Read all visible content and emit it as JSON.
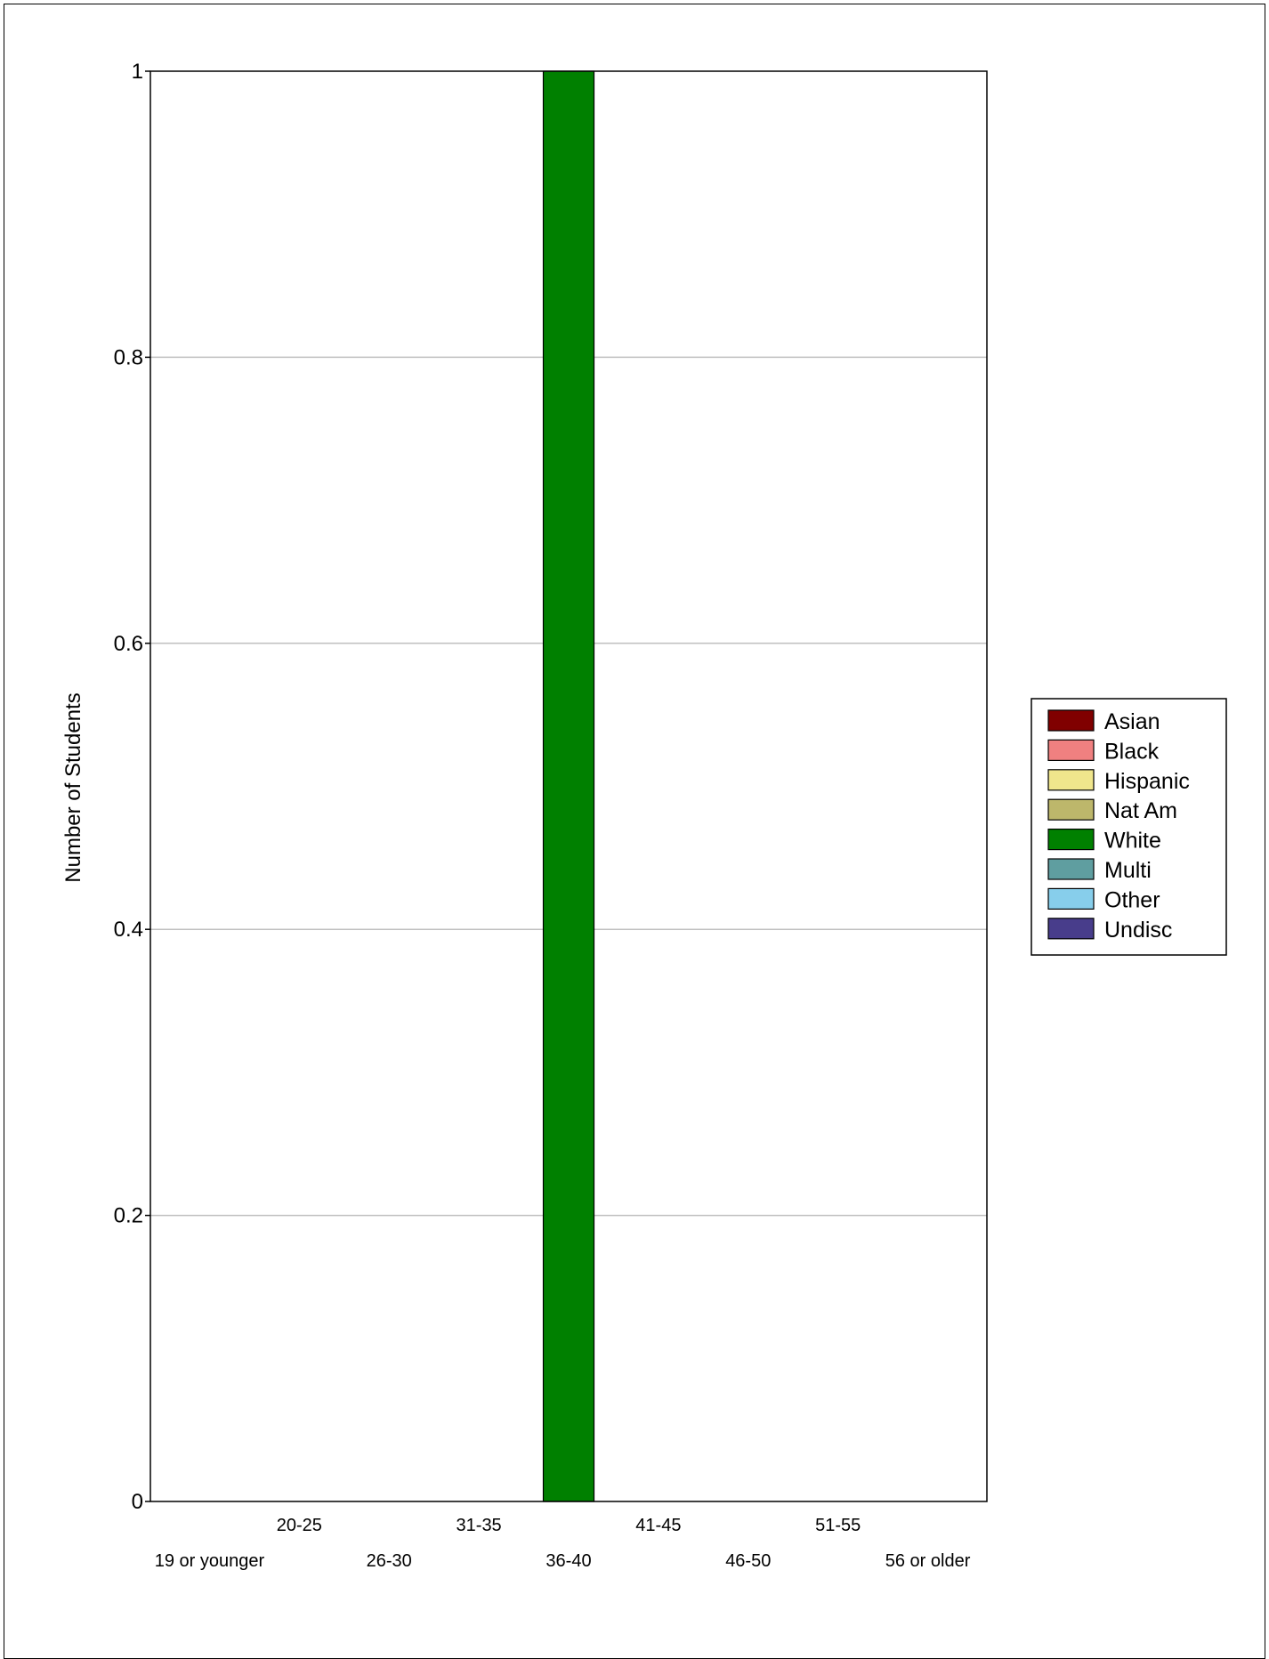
{
  "chart_data": {
    "type": "bar",
    "stacked": true,
    "ylabel": "Number of Students",
    "xlabel": "",
    "title": "",
    "ylim": [
      0,
      1
    ],
    "y_ticks": [
      "0",
      "0.2",
      "0.4",
      "0.6",
      "0.8",
      "1"
    ],
    "y_tick_values": [
      0,
      0.2,
      0.4,
      0.6,
      0.8,
      1
    ],
    "grid": "horizontal",
    "legend_position": "right",
    "categories": [
      "19 or younger",
      "20-25",
      "26-30",
      "31-35",
      "36-40",
      "41-45",
      "46-50",
      "51-55",
      "56 or older"
    ],
    "series": [
      {
        "name": "Asian",
        "color": "#800000",
        "values": [
          0,
          0,
          0,
          0,
          0,
          0,
          0,
          0,
          0
        ]
      },
      {
        "name": "Black",
        "color": "#F08080",
        "values": [
          0,
          0,
          0,
          0,
          0,
          0,
          0,
          0,
          0
        ]
      },
      {
        "name": "Hispanic",
        "color": "#F0E68C",
        "values": [
          0,
          0,
          0,
          0,
          0,
          0,
          0,
          0,
          0
        ]
      },
      {
        "name": "Nat Am",
        "color": "#BDB76B",
        "values": [
          0,
          0,
          0,
          0,
          0,
          0,
          0,
          0,
          0
        ]
      },
      {
        "name": "White",
        "color": "#008000",
        "values": [
          0,
          0,
          0,
          0,
          1,
          0,
          0,
          0,
          0
        ]
      },
      {
        "name": "Multi",
        "color": "#5F9EA0",
        "values": [
          0,
          0,
          0,
          0,
          0,
          0,
          0,
          0,
          0
        ]
      },
      {
        "name": "Other",
        "color": "#87CEEB",
        "values": [
          0,
          0,
          0,
          0,
          0,
          0,
          0,
          0,
          0
        ]
      },
      {
        "name": "Undisc",
        "color": "#483D8B",
        "values": [
          0,
          0,
          0,
          0,
          0,
          0,
          0,
          0,
          0
        ]
      }
    ]
  }
}
